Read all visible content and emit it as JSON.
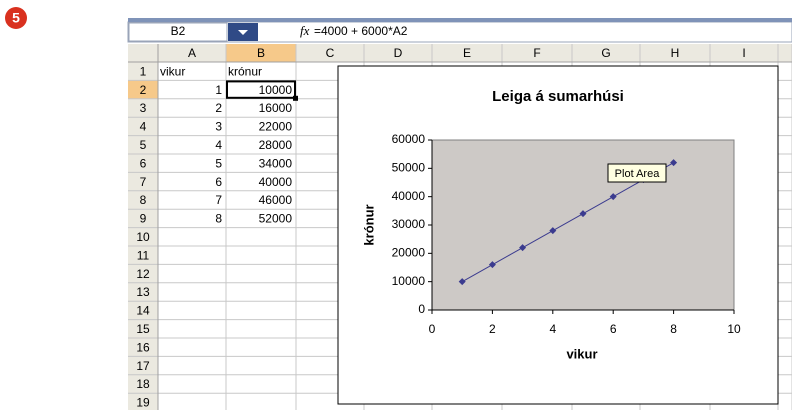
{
  "badge": "5",
  "name_box": "B2",
  "formula": "=4000 + 6000*A2",
  "sheet": {
    "columns": [
      "A",
      "B",
      "C",
      "D",
      "E",
      "F",
      "G",
      "H",
      "I"
    ],
    "row_numbers": [
      1,
      2,
      3,
      4,
      5,
      6,
      7,
      8,
      9,
      10,
      11,
      12,
      13,
      14,
      15,
      16,
      17,
      18,
      19
    ],
    "header": [
      "vikur",
      "krónur"
    ],
    "rows": [
      [
        1,
        10000
      ],
      [
        2,
        16000
      ],
      [
        3,
        22000
      ],
      [
        4,
        28000
      ],
      [
        5,
        34000
      ],
      [
        6,
        40000
      ],
      [
        7,
        46000
      ],
      [
        8,
        52000
      ]
    ]
  },
  "tooltip": "Plot Area",
  "chart_data": {
    "type": "line",
    "title": "Leiga á sumarhúsi",
    "x_label": "vikur",
    "y_label": "krónur",
    "x": [
      1,
      2,
      3,
      4,
      5,
      6,
      7,
      8
    ],
    "series": [
      {
        "name": "krónur",
        "color": "#3b3b8f",
        "values": [
          10000,
          16000,
          22000,
          28000,
          34000,
          40000,
          46000,
          52000
        ]
      }
    ],
    "xlim": [
      0,
      10
    ],
    "xticks": [
      0,
      2,
      4,
      6,
      8,
      10
    ],
    "ylim": [
      0,
      60000
    ],
    "yticks": [
      0,
      10000,
      20000,
      30000,
      40000,
      50000,
      60000
    ],
    "legend": false
  }
}
